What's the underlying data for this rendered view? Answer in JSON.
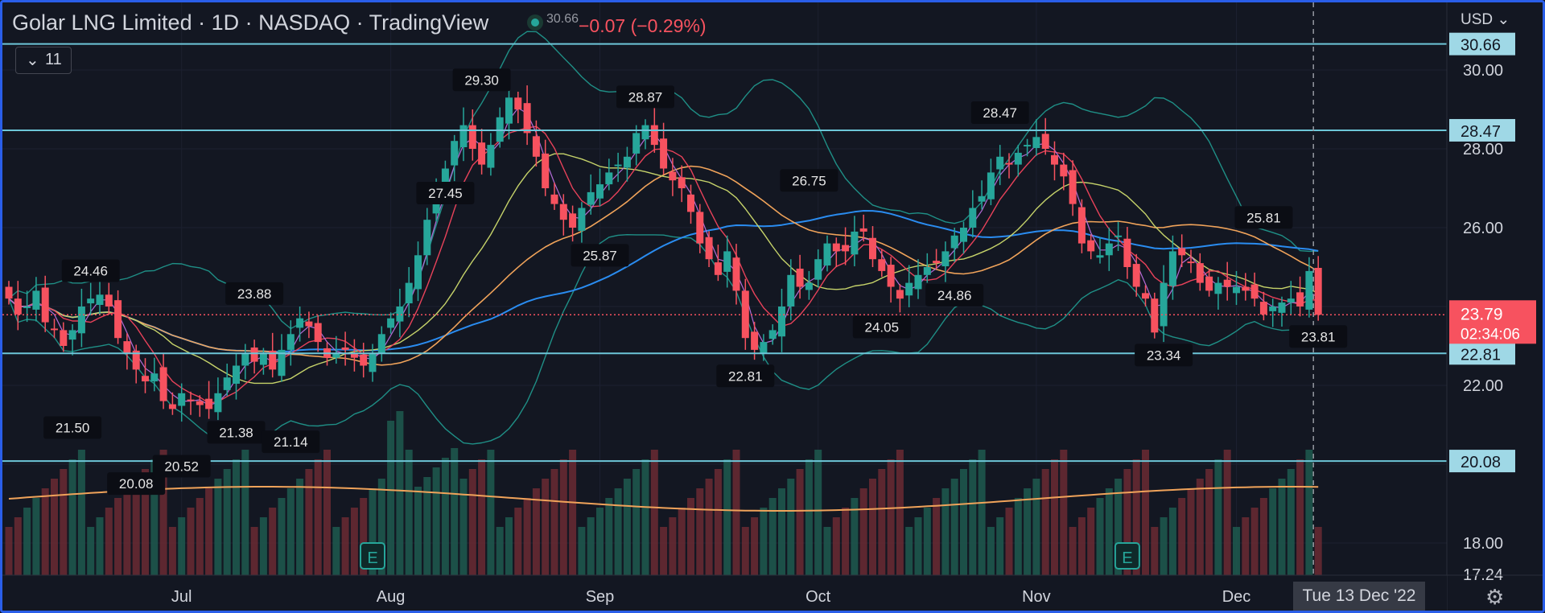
{
  "header": {
    "title": "Golar LNG Limited · 1D · NASDAQ · TradingView",
    "small_value": "30.66",
    "change": "−0.07 (−0.29%)",
    "indicators_count": "11",
    "currency": "USD"
  },
  "colors": {
    "background": "#131722",
    "up": "#26a69a",
    "down": "#f7525f",
    "level_line": "#6dc6d8",
    "level_tag_bg": "#9fd8e6",
    "price_tag_bg": "#f7525f",
    "frame": "#2a5ee8"
  },
  "crosshair_date": "Tue 13 Dec '22",
  "chart_data": {
    "type": "candlestick",
    "symbol": "Golar LNG Limited",
    "interval": "1D",
    "exchange": "NASDAQ",
    "ylim": [
      17.24,
      31.3
    ],
    "y_ticks": [
      "30.00",
      "28.00",
      "26.00",
      "22.00",
      "18.00"
    ],
    "bottom_tick_label": "17.24",
    "x_ticks": [
      "Jul",
      "Aug",
      "Sep",
      "Oct",
      "Nov",
      "Dec"
    ],
    "x_tick_days": [
      19,
      42,
      65,
      89,
      113,
      135
    ],
    "date_range": [
      "2022-06-13",
      "2022-12-13"
    ],
    "closes": [
      24.2,
      23.8,
      24.0,
      24.4,
      23.6,
      23.4,
      23.0,
      23.4,
      24.0,
      24.2,
      24.3,
      24.0,
      23.2,
      22.8,
      22.4,
      22.1,
      22.3,
      21.6,
      21.4,
      21.8,
      21.6,
      21.5,
      21.4,
      21.8,
      22.2,
      22.5,
      22.8,
      22.6,
      22.8,
      22.4,
      22.9,
      23.3,
      23.7,
      23.5,
      23.1,
      22.7,
      22.8,
      22.9,
      22.7,
      22.5,
      22.8,
      23.3,
      23.7,
      24.0,
      24.6,
      25.3,
      26.2,
      27.0,
      27.5,
      28.2,
      28.6,
      28.0,
      27.6,
      28.1,
      28.8,
      29.3,
      29.0,
      28.4,
      27.8,
      27.0,
      26.6,
      26.2,
      26.0,
      26.5,
      26.9,
      27.1,
      27.4,
      27.6,
      27.8,
      28.4,
      28.6,
      28.1,
      27.5,
      27.2,
      27.0,
      26.4,
      25.6,
      25.2,
      24.8,
      25.4,
      24.4,
      23.2,
      22.9,
      23.1,
      23.4,
      24.0,
      24.8,
      24.5,
      24.6,
      25.2,
      25.6,
      25.4,
      25.4,
      25.9,
      25.9,
      25.2,
      24.9,
      24.5,
      24.2,
      24.6,
      24.8,
      25.0,
      25.1,
      25.4,
      25.8,
      26.0,
      26.5,
      26.8,
      27.4,
      27.8,
      27.6,
      27.9,
      28.1,
      28.3,
      28.0,
      27.6,
      27.3,
      26.6,
      25.6,
      25.4,
      25.3,
      25.6,
      25.8,
      25.0,
      24.5,
      24.2,
      23.34,
      24.6,
      25.4,
      25.3,
      25.1,
      24.6,
      24.4,
      24.6,
      24.5,
      24.5,
      24.4,
      24.2,
      23.8,
      24.0,
      24.1,
      24.2,
      24.0,
      24.9,
      23.79
    ],
    "annotations": {
      "highs": [
        [
          9,
          24.46
        ],
        [
          27,
          23.88
        ],
        [
          52,
          29.3
        ],
        [
          70,
          28.87
        ],
        [
          109,
          28.47
        ],
        [
          138,
          25.81
        ],
        [
          88,
          26.75
        ]
      ],
      "lows": [
        [
          7,
          21.5
        ],
        [
          14,
          20.08
        ],
        [
          19,
          20.52
        ],
        [
          25,
          21.38
        ],
        [
          31,
          21.14
        ],
        [
          48,
          27.45
        ],
        [
          65,
          25.87
        ],
        [
          81,
          22.81
        ],
        [
          96,
          24.05
        ],
        [
          104,
          24.86
        ],
        [
          127,
          23.34
        ],
        [
          144,
          23.81
        ]
      ]
    },
    "horizontal_levels": [
      "30.66",
      "28.47",
      "22.81",
      "20.08"
    ],
    "last_price": "23.79",
    "countdown": "02:34:06",
    "earnings_markers": [
      40,
      123
    ]
  }
}
